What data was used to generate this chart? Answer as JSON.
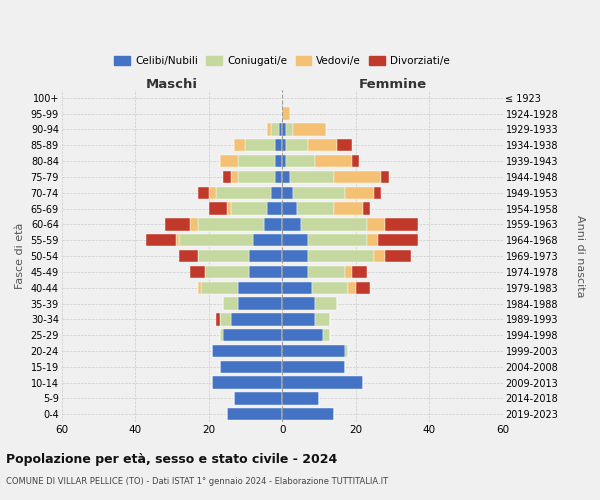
{
  "age_groups": [
    "100+",
    "95-99",
    "90-94",
    "85-89",
    "80-84",
    "75-79",
    "70-74",
    "65-69",
    "60-64",
    "55-59",
    "50-54",
    "45-49",
    "40-44",
    "35-39",
    "30-34",
    "25-29",
    "20-24",
    "15-19",
    "10-14",
    "5-9",
    "0-4"
  ],
  "birth_years": [
    "≤ 1923",
    "1924-1928",
    "1929-1933",
    "1934-1938",
    "1939-1943",
    "1944-1948",
    "1949-1953",
    "1954-1958",
    "1959-1963",
    "1964-1968",
    "1969-1973",
    "1974-1978",
    "1979-1983",
    "1984-1988",
    "1989-1993",
    "1994-1998",
    "1999-2003",
    "2004-2008",
    "2009-2013",
    "2014-2018",
    "2019-2023"
  ],
  "males": {
    "celibi": [
      0,
      0,
      1,
      2,
      2,
      2,
      3,
      4,
      5,
      8,
      9,
      9,
      12,
      12,
      14,
      16,
      19,
      17,
      19,
      13,
      15
    ],
    "coniugati": [
      0,
      0,
      2,
      8,
      10,
      10,
      15,
      10,
      18,
      20,
      14,
      12,
      10,
      4,
      3,
      1,
      0,
      0,
      0,
      0,
      0
    ],
    "vedovi": [
      0,
      0,
      1,
      3,
      5,
      2,
      2,
      1,
      2,
      1,
      0,
      0,
      1,
      0,
      0,
      0,
      0,
      0,
      0,
      0,
      0
    ],
    "divorziati": [
      0,
      0,
      0,
      0,
      0,
      2,
      3,
      5,
      7,
      8,
      5,
      4,
      0,
      0,
      1,
      0,
      0,
      0,
      0,
      0,
      0
    ]
  },
  "females": {
    "nubili": [
      0,
      0,
      1,
      1,
      1,
      2,
      3,
      4,
      5,
      7,
      7,
      7,
      8,
      9,
      9,
      11,
      17,
      17,
      22,
      10,
      14
    ],
    "coniugate": [
      0,
      0,
      2,
      6,
      8,
      12,
      14,
      10,
      18,
      16,
      18,
      10,
      10,
      6,
      4,
      2,
      1,
      0,
      0,
      0,
      0
    ],
    "vedove": [
      0,
      2,
      9,
      8,
      10,
      13,
      8,
      8,
      5,
      3,
      3,
      2,
      2,
      0,
      0,
      0,
      0,
      0,
      0,
      0,
      0
    ],
    "divorziate": [
      0,
      0,
      0,
      4,
      2,
      2,
      2,
      2,
      9,
      11,
      7,
      4,
      4,
      0,
      0,
      0,
      0,
      0,
      0,
      0,
      0
    ]
  },
  "colors": {
    "celibi": "#4472c4",
    "coniugati": "#c5d8a0",
    "vedovi": "#f4c174",
    "divorziati": "#c0392b"
  },
  "xlim": 60,
  "title": "Popolazione per età, sesso e stato civile - 2024",
  "subtitle": "COMUNE DI VILLAR PELLICE (TO) - Dati ISTAT 1° gennaio 2024 - Elaborazione TUTTITALIA.IT",
  "ylabel": "Fasce di età",
  "ylabel_right": "Anni di nascita",
  "legend_labels": [
    "Celibi/Nubili",
    "Coniugati/e",
    "Vedovi/e",
    "Divorziati/e"
  ],
  "background_color": "#f0f0f0"
}
